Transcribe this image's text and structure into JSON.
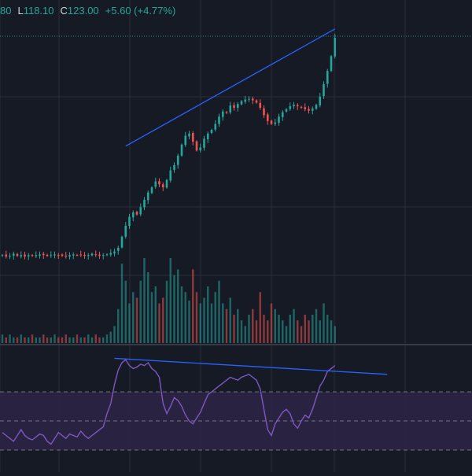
{
  "header": {
    "open_partial": "80",
    "low_label": "L",
    "low_value": "118.10",
    "close_label": "C",
    "close_value": "123.00",
    "change": "+5.60 (+4.77%)"
  },
  "colors": {
    "background": "#161a25",
    "grid": "#2a2e39",
    "up": "#26a69a",
    "down": "#ef5350",
    "trendline": "#2962ff",
    "rsi_line": "#7e57c2",
    "rsi_band": "#2b2444",
    "rsi_guides": "#9598a1",
    "last_price_line": "#26a69a"
  },
  "chart_data": [
    {
      "type": "candlestick",
      "description_of_values": "price series, estimated from shape (axes not visible)",
      "price_path": [
        101,
        100.8,
        100.9,
        101.2,
        100.9,
        101,
        100.8,
        101,
        100.9,
        101,
        101.1,
        101,
        100.9,
        101,
        101.1,
        101,
        100.9,
        100.8,
        101,
        101.1,
        101,
        101,
        100.9,
        101,
        101.2,
        101,
        100.9,
        101,
        101.1,
        101.3,
        101.5,
        102,
        103.5,
        105,
        106.2,
        106.8,
        106.5,
        107.5,
        108.5,
        109.5,
        110.2,
        111,
        110.6,
        110.2,
        111.2,
        112.5,
        113.2,
        114.5,
        116,
        117.2,
        117.5,
        116.4,
        115.2,
        115.6,
        116.8,
        117.5,
        118,
        118.8,
        119.8,
        120.5,
        120.3,
        121.3,
        121,
        121.5,
        121.9,
        122.1,
        122.2,
        122,
        121.7,
        121,
        120,
        119.2,
        118.8,
        119,
        119.8,
        120.4,
        120.8,
        121.2,
        121.4,
        121.2,
        121,
        120.8,
        120.6,
        120.9,
        121.4,
        122.5,
        124.2,
        126,
        128,
        130.5
      ],
      "volume_relative": [
        3,
        2,
        3,
        2,
        2,
        3,
        2,
        2,
        3,
        2,
        2,
        3,
        2,
        2,
        3,
        2,
        2,
        3,
        2,
        2,
        3,
        2,
        2,
        3,
        2,
        3,
        2,
        2,
        3,
        4,
        6,
        12,
        28,
        22,
        14,
        18,
        16,
        22,
        30,
        25,
        18,
        20,
        14,
        16,
        22,
        30,
        24,
        26,
        20,
        18,
        15,
        26,
        18,
        14,
        16,
        20,
        14,
        18,
        22,
        14,
        12,
        16,
        10,
        12,
        8,
        6,
        10,
        12,
        8,
        18,
        10,
        8,
        14,
        12,
        10,
        8,
        6,
        10,
        12,
        8,
        6,
        10,
        8,
        10,
        12,
        8,
        14,
        10,
        8,
        6
      ],
      "trendlines": [
        {
          "name": "upper-trendline",
          "from_index": 33,
          "from_price": 115.8,
          "to_index": 89,
          "to_price": 131.7
        }
      ]
    },
    {
      "type": "line",
      "indicator": "RSI",
      "guide_levels": [
        70,
        50,
        30
      ],
      "values": [
        42,
        40,
        38,
        36,
        40,
        44,
        40,
        38,
        37,
        39,
        41,
        40,
        36,
        34,
        38,
        42,
        40,
        38,
        41,
        40,
        39,
        43,
        40,
        38,
        40,
        42,
        44,
        46,
        55,
        62,
        75,
        85,
        90,
        92,
        88,
        86,
        87,
        89,
        88,
        90,
        86,
        84,
        80,
        62,
        55,
        60,
        66,
        64,
        60,
        54,
        50,
        48,
        52,
        56,
        62,
        68,
        70,
        72,
        74,
        76,
        78,
        80,
        79,
        78,
        80,
        81,
        82,
        80,
        78,
        72,
        58,
        44,
        40,
        48,
        52,
        56,
        58,
        55,
        48,
        45,
        50,
        54,
        52,
        58,
        66,
        74,
        78,
        84,
        86,
        88
      ],
      "trendline": {
        "name": "rsi-trendline",
        "from_index": 30,
        "from_value": 93,
        "to_index": 103,
        "to_value": 82
      }
    }
  ]
}
